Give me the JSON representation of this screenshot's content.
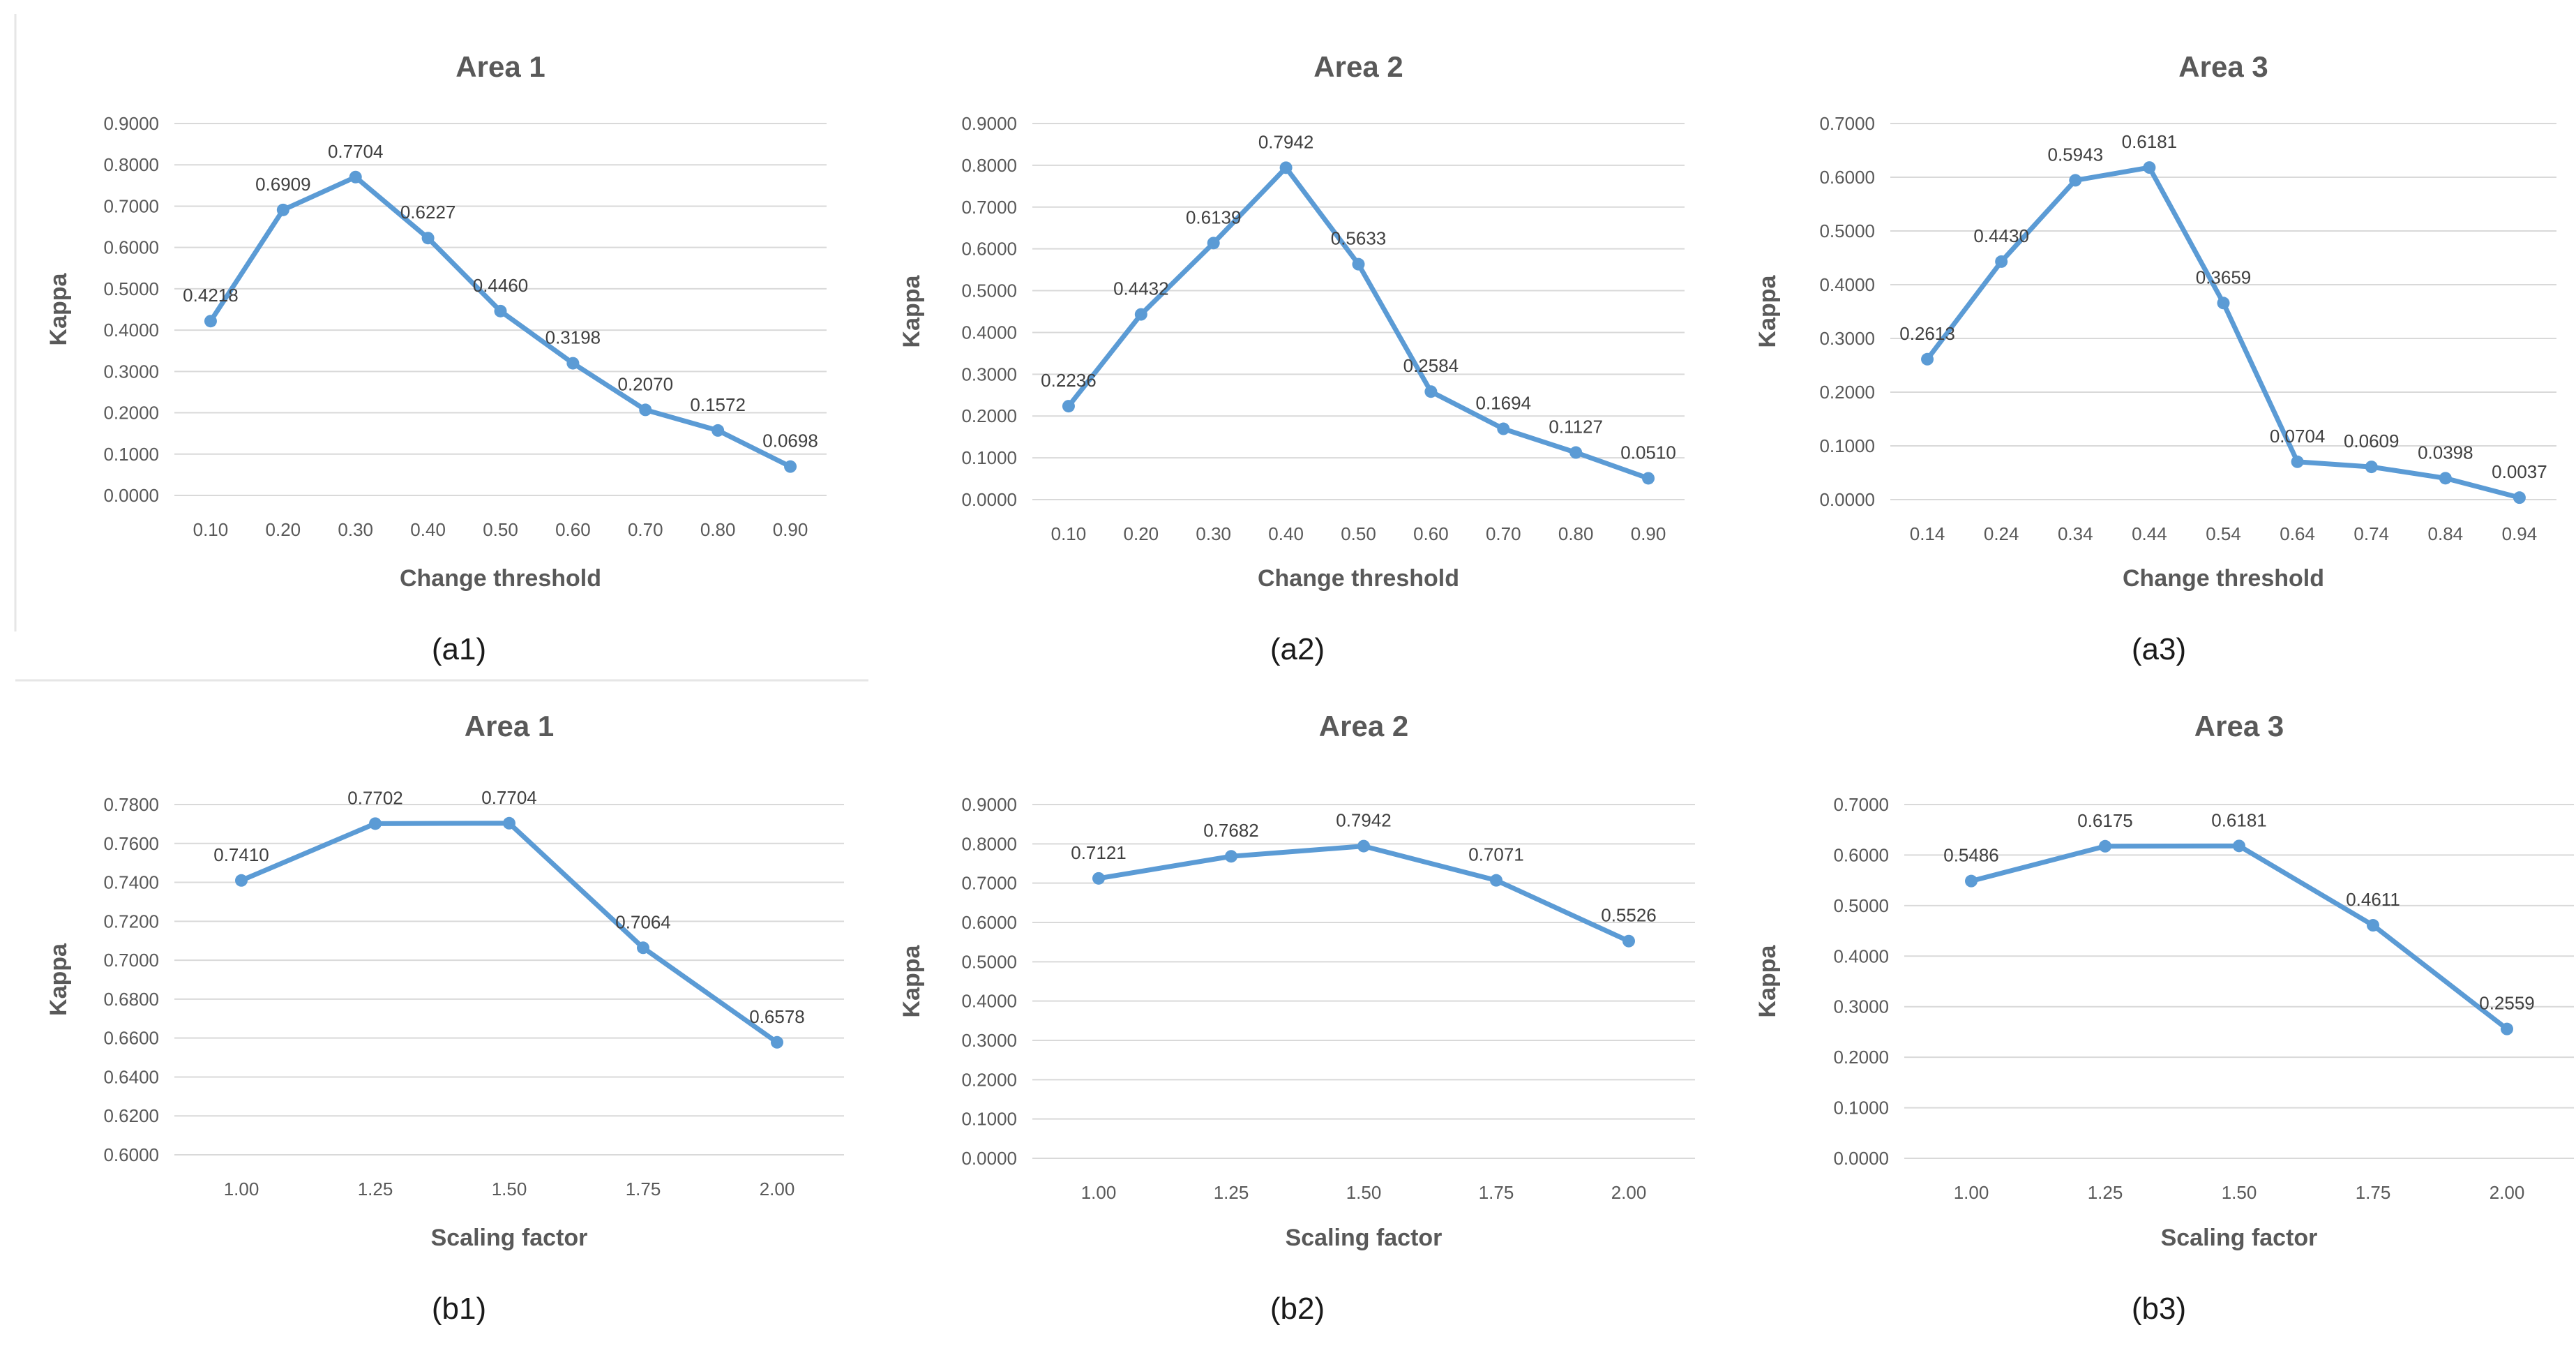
{
  "line_color": "#5b9bd5",
  "grid_color": "#d9d9d9",
  "chart_data": [
    {
      "type": "line",
      "panel": "a1",
      "caption": "(a1)",
      "title": "Area 1",
      "xlabel": "Change threshold",
      "ylabel": "Kappa",
      "categories": [
        "0.10",
        "0.20",
        "0.30",
        "0.40",
        "0.50",
        "0.60",
        "0.70",
        "0.80",
        "0.90"
      ],
      "values": [
        0.4218,
        0.6909,
        0.7704,
        0.6227,
        0.446,
        0.3198,
        0.207,
        0.1572,
        0.0698
      ],
      "data_labels": [
        "0.4218",
        "0.6909",
        "0.7704",
        "0.6227",
        "0.4460",
        "0.3198",
        "0.2070",
        "0.1572",
        "0.0698"
      ],
      "ylim": [
        0,
        0.9
      ],
      "ytick_values": [
        0,
        0.1,
        0.2,
        0.3,
        0.4,
        0.5,
        0.6,
        0.7,
        0.8,
        0.9
      ],
      "ytick_labels": [
        "0.0000",
        "0.1000",
        "0.2000",
        "0.3000",
        "0.4000",
        "0.5000",
        "0.6000",
        "0.7000",
        "0.8000",
        "0.9000"
      ]
    },
    {
      "type": "line",
      "panel": "a2",
      "caption": "(a2)",
      "title": "Area 2",
      "xlabel": "Change threshold",
      "ylabel": "Kappa",
      "categories": [
        "0.10",
        "0.20",
        "0.30",
        "0.40",
        "0.50",
        "0.60",
        "0.70",
        "0.80",
        "0.90"
      ],
      "values": [
        0.2236,
        0.4432,
        0.6139,
        0.7942,
        0.5633,
        0.2584,
        0.1694,
        0.1127,
        0.051
      ],
      "data_labels": [
        "0.2236",
        "0.4432",
        "0.6139",
        "0.7942",
        "0.5633",
        "0.2584",
        "0.1694",
        "0.1127",
        "0.0510"
      ],
      "ylim": [
        0,
        0.9
      ],
      "ytick_values": [
        0,
        0.1,
        0.2,
        0.3,
        0.4,
        0.5,
        0.6,
        0.7,
        0.8,
        0.9
      ],
      "ytick_labels": [
        "0.0000",
        "0.1000",
        "0.2000",
        "0.3000",
        "0.4000",
        "0.5000",
        "0.6000",
        "0.7000",
        "0.8000",
        "0.9000"
      ]
    },
    {
      "type": "line",
      "panel": "a3",
      "caption": "(a3)",
      "title": "Area 3",
      "xlabel": "Change threshold",
      "ylabel": "Kappa",
      "categories": [
        "0.14",
        "0.24",
        "0.34",
        "0.44",
        "0.54",
        "0.64",
        "0.74",
        "0.84",
        "0.94"
      ],
      "values": [
        0.2613,
        0.443,
        0.5943,
        0.6181,
        0.3659,
        0.0704,
        0.0609,
        0.0398,
        0.0037
      ],
      "data_labels": [
        "0.2613",
        "0.4430",
        "0.5943",
        "0.6181",
        "0.3659",
        "0.0704",
        "0.0609",
        "0.0398",
        "0.0037"
      ],
      "ylim": [
        0,
        0.7
      ],
      "ytick_values": [
        0,
        0.1,
        0.2,
        0.3,
        0.4,
        0.5,
        0.6,
        0.7
      ],
      "ytick_labels": [
        "0.0000",
        "0.1000",
        "0.2000",
        "0.3000",
        "0.4000",
        "0.5000",
        "0.6000",
        "0.7000"
      ]
    },
    {
      "type": "line",
      "panel": "b1",
      "caption": "(b1)",
      "title": "Area 1",
      "xlabel": "Scaling factor",
      "ylabel": "Kappa",
      "categories": [
        "1.00",
        "1.25",
        "1.50",
        "1.75",
        "2.00"
      ],
      "values": [
        0.741,
        0.7702,
        0.7704,
        0.7064,
        0.6578
      ],
      "data_labels": [
        "0.7410",
        "0.7702",
        "0.7704",
        "0.7064",
        "0.6578"
      ],
      "ylim": [
        0.6,
        0.78
      ],
      "ytick_values": [
        0.6,
        0.62,
        0.64,
        0.66,
        0.68,
        0.7,
        0.72,
        0.74,
        0.76,
        0.78
      ],
      "ytick_labels": [
        "0.6000",
        "0.6200",
        "0.6400",
        "0.6600",
        "0.6800",
        "0.7000",
        "0.7200",
        "0.7400",
        "0.7600",
        "0.7800"
      ]
    },
    {
      "type": "line",
      "panel": "b2",
      "caption": "(b2)",
      "title": "Area 2",
      "xlabel": "Scaling factor",
      "ylabel": "Kappa",
      "categories": [
        "1.00",
        "1.25",
        "1.50",
        "1.75",
        "2.00"
      ],
      "values": [
        0.7121,
        0.7682,
        0.7942,
        0.7071,
        0.5526
      ],
      "data_labels": [
        "0.7121",
        "0.7682",
        "0.7942",
        "0.7071",
        "0.5526"
      ],
      "ylim": [
        0,
        0.9
      ],
      "ytick_values": [
        0,
        0.1,
        0.2,
        0.3,
        0.4,
        0.5,
        0.6,
        0.7,
        0.8,
        0.9
      ],
      "ytick_labels": [
        "0.0000",
        "0.1000",
        "0.2000",
        "0.3000",
        "0.4000",
        "0.5000",
        "0.6000",
        "0.7000",
        "0.8000",
        "0.9000"
      ]
    },
    {
      "type": "line",
      "panel": "b3",
      "caption": "(b3)",
      "title": "Area 3",
      "xlabel": "Scaling factor",
      "ylabel": "Kappa",
      "categories": [
        "1.00",
        "1.25",
        "1.50",
        "1.75",
        "2.00"
      ],
      "values": [
        0.5486,
        0.6175,
        0.6181,
        0.4611,
        0.2559
      ],
      "data_labels": [
        "0.5486",
        "0.6175",
        "0.6181",
        "0.4611",
        "0.2559"
      ],
      "ylim": [
        0,
        0.7
      ],
      "ytick_values": [
        0,
        0.1,
        0.2,
        0.3,
        0.4,
        0.5,
        0.6,
        0.7
      ],
      "ytick_labels": [
        "0.0000",
        "0.1000",
        "0.2000",
        "0.3000",
        "0.4000",
        "0.5000",
        "0.6000",
        "0.7000"
      ]
    }
  ]
}
